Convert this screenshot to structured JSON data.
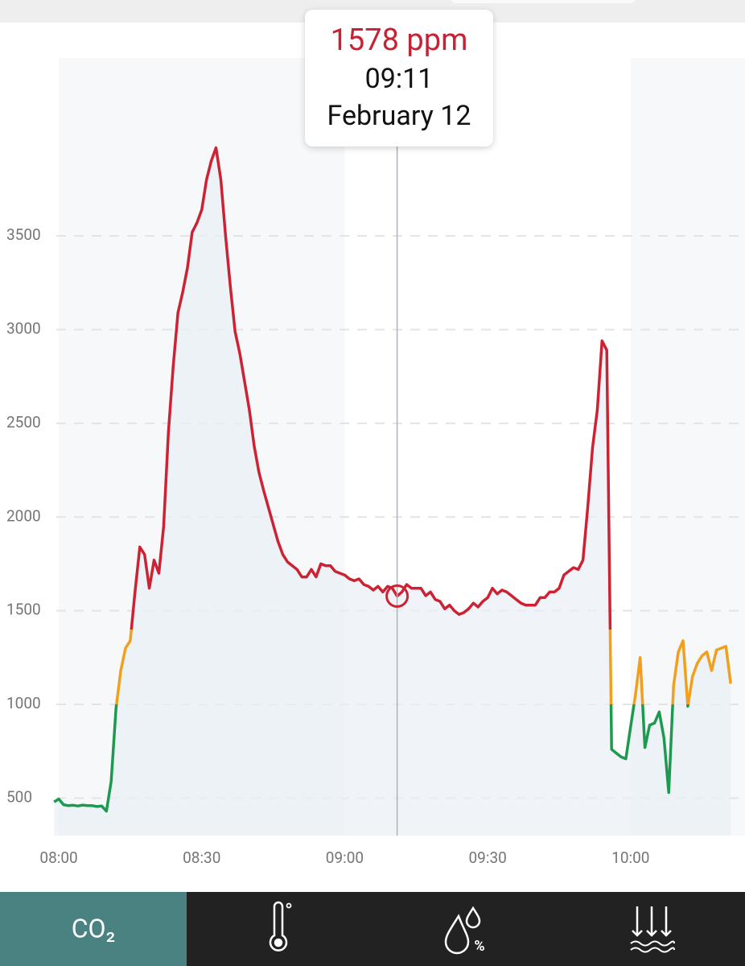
{
  "chart_data": {
    "type": "line",
    "x": [
      "07:59",
      "08:00",
      "08:01",
      "08:02",
      "08:03",
      "08:04",
      "08:05",
      "08:06",
      "08:07",
      "08:08",
      "08:09",
      "08:10",
      "08:11",
      "08:12",
      "08:13",
      "08:14",
      "08:15",
      "08:16",
      "08:17",
      "08:18",
      "08:19",
      "08:20",
      "08:21",
      "08:22",
      "08:23",
      "08:24",
      "08:25",
      "08:26",
      "08:27",
      "08:28",
      "08:29",
      "08:30",
      "08:31",
      "08:32",
      "08:33",
      "08:34",
      "08:35",
      "08:36",
      "08:37",
      "08:38",
      "08:39",
      "08:40",
      "08:41",
      "08:42",
      "08:43",
      "08:44",
      "08:45",
      "08:46",
      "08:47",
      "08:48",
      "08:49",
      "08:50",
      "08:51",
      "08:52",
      "08:53",
      "08:54",
      "08:55",
      "08:56",
      "08:57",
      "08:58",
      "08:59",
      "09:00",
      "09:01",
      "09:02",
      "09:03",
      "09:04",
      "09:05",
      "09:06",
      "09:07",
      "09:08",
      "09:09",
      "09:10",
      "09:11",
      "09:12",
      "09:13",
      "09:14",
      "09:15",
      "09:16",
      "09:17",
      "09:18",
      "09:19",
      "09:20",
      "09:21",
      "09:22",
      "09:23",
      "09:24",
      "09:25",
      "09:26",
      "09:27",
      "09:28",
      "09:29",
      "09:30",
      "09:31",
      "09:32",
      "09:33",
      "09:34",
      "09:35",
      "09:36",
      "09:37",
      "09:38",
      "09:39",
      "09:40",
      "09:41",
      "09:42",
      "09:43",
      "09:44",
      "09:45",
      "09:46",
      "09:47",
      "09:48",
      "09:49",
      "09:50",
      "09:51",
      "09:52",
      "09:53",
      "09:54",
      "09:55",
      "09:56",
      "09:57",
      "09:58",
      "09:59",
      "10:00",
      "10:01",
      "10:02",
      "10:03",
      "10:04",
      "10:05",
      "10:06",
      "10:07",
      "10:08",
      "10:09",
      "10:10",
      "10:11",
      "10:12",
      "10:13",
      "10:14",
      "10:15",
      "10:16",
      "10:17",
      "10:18",
      "10:19",
      "10:20",
      "10:21"
    ],
    "values": [
      480,
      495,
      465,
      460,
      462,
      458,
      463,
      460,
      460,
      455,
      458,
      430,
      590,
      980,
      1180,
      1300,
      1340,
      1600,
      1840,
      1800,
      1620,
      1770,
      1700,
      1950,
      2450,
      2800,
      3090,
      3200,
      3330,
      3520,
      3570,
      3640,
      3800,
      3900,
      3970,
      3800,
      3500,
      3230,
      2990,
      2870,
      2720,
      2570,
      2380,
      2240,
      2140,
      2050,
      1960,
      1870,
      1800,
      1760,
      1740,
      1720,
      1680,
      1680,
      1720,
      1680,
      1750,
      1740,
      1740,
      1710,
      1700,
      1690,
      1670,
      1660,
      1670,
      1640,
      1630,
      1610,
      1630,
      1600,
      1630,
      1620,
      1578,
      1600,
      1640,
      1620,
      1620,
      1620,
      1580,
      1600,
      1560,
      1550,
      1510,
      1530,
      1500,
      1480,
      1490,
      1510,
      1540,
      1520,
      1550,
      1570,
      1620,
      1590,
      1610,
      1600,
      1580,
      1560,
      1540,
      1530,
      1530,
      1530,
      1570,
      1570,
      1600,
      1600,
      1620,
      1690,
      1710,
      1730,
      1720,
      1770,
      2050,
      2370,
      2570,
      2940,
      2890,
      760,
      740,
      720,
      710,
      880,
      1050,
      1250,
      770,
      890,
      900,
      960,
      820,
      530,
      1100,
      1280,
      1340,
      990,
      1150,
      1220,
      1260,
      1280,
      1180,
      1290,
      1300,
      1310,
      1110
    ],
    "color_bands": [
      {
        "below": 1000,
        "color": "#1e9a50"
      },
      {
        "below": 1400,
        "color": "#f0a01c"
      },
      {
        "color": "#cc2233"
      }
    ],
    "area_color": "#e9eff5",
    "xlim": [
      "07:48",
      "10:24"
    ],
    "xticks": [
      "08:00",
      "08:30",
      "09:00",
      "09:30",
      "10:00"
    ],
    "ylim": [
      300,
      4630
    ],
    "yticks": [
      500,
      1000,
      1500,
      2000,
      2500,
      3000,
      3500
    ],
    "grid": true,
    "tooltip": {
      "value": 1578,
      "label": "1578 ppm",
      "time": "09:11",
      "date": "February 12"
    }
  },
  "tabs": [
    "CO₂"
  ]
}
